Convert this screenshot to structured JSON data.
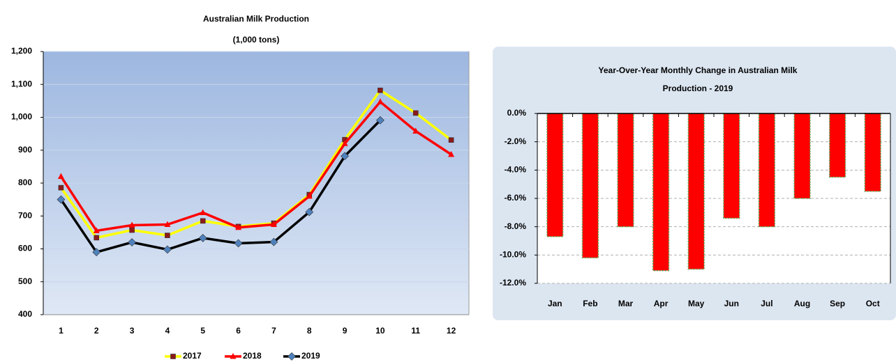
{
  "chart_data": [
    {
      "type": "line",
      "title": "Australian Milk Production",
      "subtitle": "(1,000 tons)",
      "categories": [
        "1",
        "2",
        "3",
        "4",
        "5",
        "6",
        "7",
        "8",
        "9",
        "10",
        "11",
        "12"
      ],
      "series": [
        {
          "name": "2017",
          "color": "#ffff00",
          "marker": "square",
          "marker_color": "#8b1a1a",
          "values": [
            786,
            634,
            657,
            641,
            685,
            668,
            678,
            765,
            932,
            1082,
            1013,
            931
          ]
        },
        {
          "name": "2018",
          "color": "#ff0000",
          "marker": "triangle",
          "marker_color": "#ff0000",
          "values": [
            820,
            655,
            672,
            674,
            710,
            665,
            674,
            760,
            920,
            1047,
            958,
            887
          ]
        },
        {
          "name": "2019",
          "color": "#000000",
          "marker": "diamond",
          "marker_color": "#4f81bd",
          "values": [
            750,
            590,
            620,
            598,
            633,
            617,
            621,
            712,
            882,
            991,
            null,
            null
          ]
        }
      ],
      "ylim": [
        400,
        1200
      ],
      "yticks": [
        400,
        500,
        600,
        700,
        800,
        900,
        {
          "value": 1000,
          "label": "1,000"
        },
        {
          "value": 1100,
          "label": "1,100"
        },
        {
          "value": 1200,
          "label": "1,200"
        }
      ],
      "grid": true,
      "legend": "bottom"
    },
    {
      "type": "bar",
      "title": "Year-Over-Year Monthly Change in Australian  Milk",
      "subtitle": "Production - 2019",
      "categories": [
        "Jan",
        "Feb",
        "Mar",
        "Apr",
        "May",
        "Jun",
        "Jul",
        "Aug",
        "Sep",
        "Oct"
      ],
      "values": [
        -8.7,
        -10.2,
        -8.0,
        -11.1,
        -11.0,
        -7.4,
        -8.0,
        -6.0,
        -4.5,
        -5.5
      ],
      "color": "#ff0000",
      "edge_color": "#4caf50",
      "ylim": [
        -12,
        0
      ],
      "yticks": [
        {
          "value": 0,
          "label": "0.0%"
        },
        {
          "value": -2,
          "label": "-2.0%"
        },
        {
          "value": -4,
          "label": "-4.0%"
        },
        {
          "value": -6,
          "label": "-6.0%"
        },
        {
          "value": -8,
          "label": "-8.0%"
        },
        {
          "value": -10,
          "label": "-10.0%"
        },
        {
          "value": -12,
          "label": "-12.0%"
        }
      ],
      "grid": true
    }
  ]
}
